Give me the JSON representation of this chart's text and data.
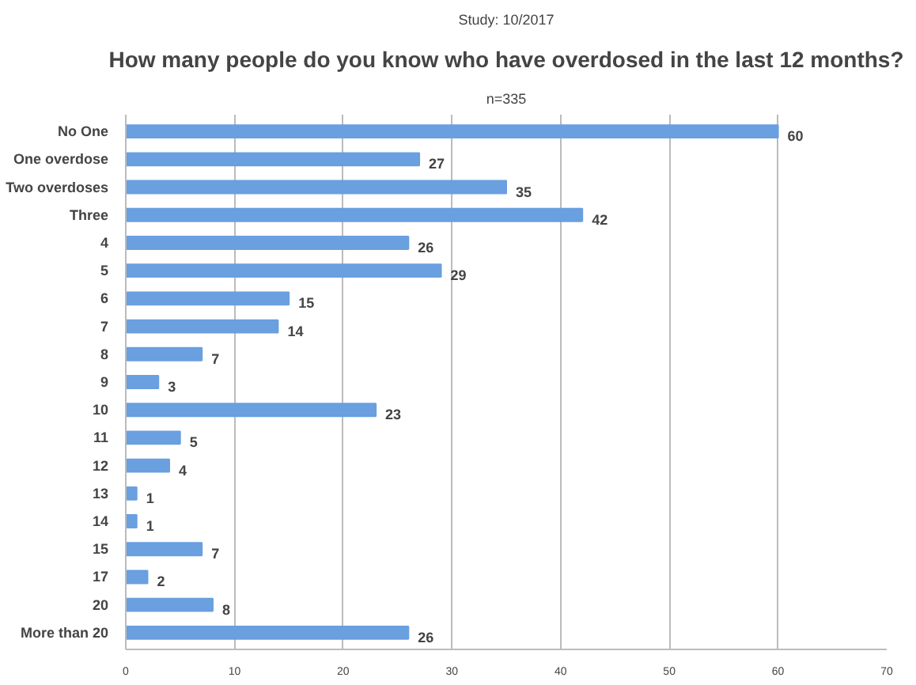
{
  "chart_data": {
    "type": "bar",
    "orientation": "horizontal",
    "title": "How many people do you know who have overdosed in the last 12 months?",
    "subtitle": "n=335",
    "annotations": [
      "Study: 10/2017"
    ],
    "categories": [
      "No One",
      "One overdose",
      "Two overdoses",
      "Three",
      "4",
      "5",
      "6",
      "7",
      "8",
      "9",
      "10",
      "11",
      "12",
      "13",
      "14",
      "15",
      "17",
      "20",
      "More than 20"
    ],
    "values": [
      60,
      27,
      35,
      42,
      26,
      29,
      15,
      14,
      7,
      3,
      23,
      5,
      4,
      1,
      1,
      7,
      2,
      8,
      26
    ],
    "color": "#6a9fe0",
    "xlim": [
      0,
      70
    ],
    "xticks": [
      0,
      10,
      20,
      30,
      40,
      50,
      60,
      70
    ],
    "grid": "x",
    "data_labels": true
  }
}
